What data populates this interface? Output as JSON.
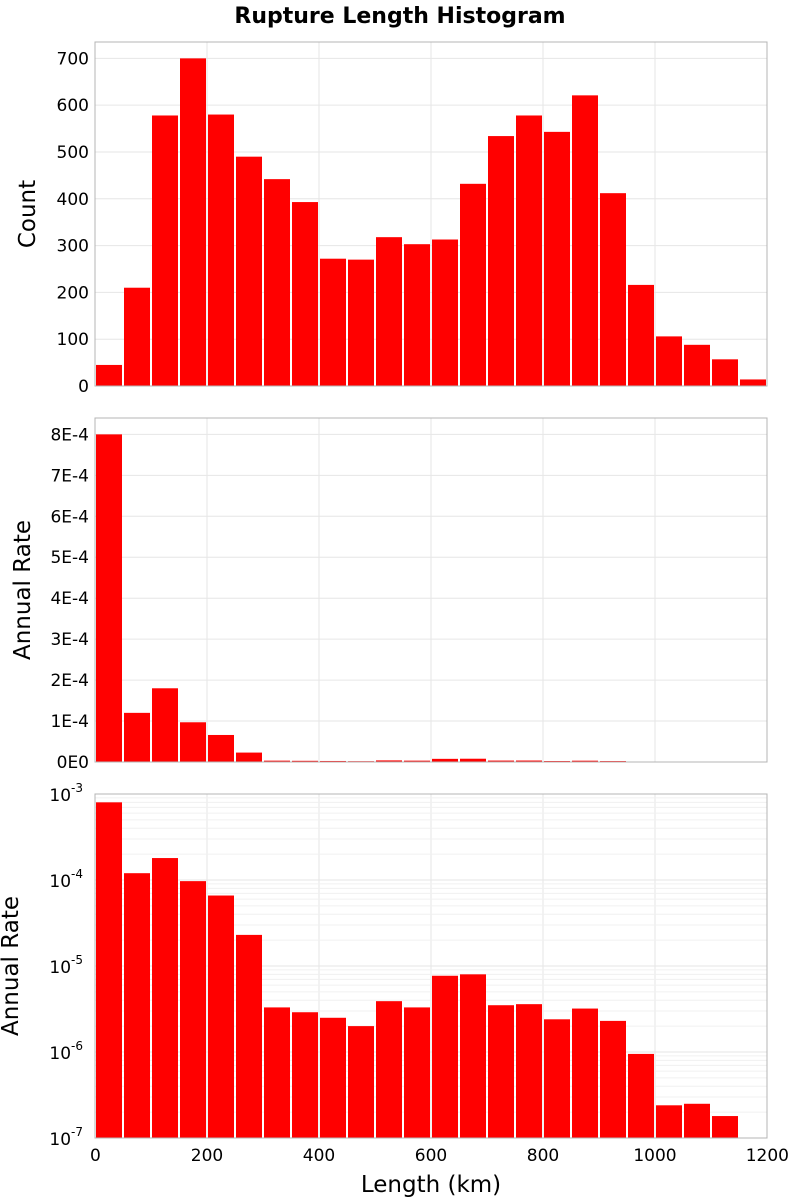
{
  "figure": {
    "title": "Rupture Length Histogram",
    "bar_color": "#ff0000",
    "grid_color": "#e6e6e6",
    "frame_color": "#b4b4b4"
  },
  "chart_data": [
    {
      "type": "bar",
      "title": "Rupture Length Histogram",
      "xlabel": "",
      "ylabel": "Count",
      "yscale": "linear",
      "xlim": [
        0,
        1200
      ],
      "ylim": [
        0,
        735
      ],
      "bin_width": 50,
      "x": [
        0,
        50,
        100,
        150,
        200,
        250,
        300,
        350,
        400,
        450,
        500,
        550,
        600,
        650,
        700,
        750,
        800,
        850,
        900,
        950,
        1000,
        1050,
        1100,
        1150
      ],
      "values": [
        45,
        210,
        578,
        700,
        580,
        490,
        442,
        393,
        272,
        270,
        318,
        303,
        313,
        432,
        534,
        578,
        543,
        621,
        412,
        216,
        106,
        88,
        57,
        14
      ],
      "yticks": [
        0,
        100,
        200,
        300,
        400,
        500,
        600,
        700
      ],
      "ytick_labels": [
        "0",
        "100",
        "200",
        "300",
        "400",
        "500",
        "600",
        "700"
      ],
      "grid": true
    },
    {
      "type": "bar",
      "xlabel": "",
      "ylabel": "Annual Rate",
      "yscale": "linear",
      "xlim": [
        0,
        1200
      ],
      "ylim": [
        0,
        0.00084
      ],
      "bin_width": 50,
      "x": [
        0,
        50,
        100,
        150,
        200,
        250,
        300,
        350,
        400,
        450,
        500,
        550,
        600,
        650,
        700,
        750,
        800,
        850,
        900,
        950,
        1000,
        1050,
        1100,
        1150
      ],
      "values": [
        0.0008,
        0.00012,
        0.00018,
        9.7e-05,
        6.6e-05,
        2.3e-05,
        3.3e-06,
        2.9e-06,
        2.5e-06,
        2e-06,
        3.9e-06,
        3.3e-06,
        7.7e-06,
        8e-06,
        3.5e-06,
        3.6e-06,
        2.4e-06,
        3.2e-06,
        2.3e-06,
        9.5e-07,
        2.4e-07,
        2.5e-07,
        1.8e-07,
        1e-07
      ],
      "yticks": [
        0,
        0.0001,
        0.0002,
        0.0003,
        0.0004,
        0.0005,
        0.0006,
        0.0007,
        0.0008
      ],
      "ytick_labels": [
        "0E0",
        "1E-4",
        "2E-4",
        "3E-4",
        "4E-4",
        "5E-4",
        "6E-4",
        "7E-4",
        "8E-4"
      ],
      "grid": true
    },
    {
      "type": "bar",
      "xlabel": "Length (km)",
      "ylabel": "Annual Rate",
      "yscale": "log",
      "xlim": [
        0,
        1200
      ],
      "ylim": [
        1e-07,
        0.001
      ],
      "bin_width": 50,
      "x": [
        0,
        50,
        100,
        150,
        200,
        250,
        300,
        350,
        400,
        450,
        500,
        550,
        600,
        650,
        700,
        750,
        800,
        850,
        900,
        950,
        1000,
        1050,
        1100,
        1150
      ],
      "values": [
        0.0008,
        0.00012,
        0.00018,
        9.7e-05,
        6.6e-05,
        2.3e-05,
        3.3e-06,
        2.9e-06,
        2.5e-06,
        2e-06,
        3.9e-06,
        3.3e-06,
        7.7e-06,
        8e-06,
        3.5e-06,
        3.6e-06,
        2.4e-06,
        3.2e-06,
        2.3e-06,
        9.5e-07,
        2.4e-07,
        2.5e-07,
        1.8e-07,
        1e-07
      ],
      "yticks": [
        1e-07,
        1e-06,
        1e-05,
        0.0001,
        0.001
      ],
      "ytick_base": [
        "10",
        "10",
        "10",
        "10",
        "10"
      ],
      "ytick_exp": [
        "-7",
        "-6",
        "-5",
        "-4",
        "-3"
      ],
      "xticks": [
        0,
        200,
        400,
        600,
        800,
        1000,
        1200
      ],
      "xtick_labels": [
        "0",
        "200",
        "400",
        "600",
        "800",
        "1000",
        "1200"
      ],
      "grid": true
    }
  ]
}
